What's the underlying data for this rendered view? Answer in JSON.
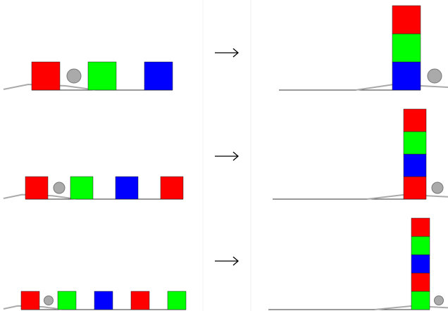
{
  "rows": [
    {
      "start": [
        "#ff0000",
        "#00ff00",
        "#0000ff"
      ],
      "goal": [
        "#0000ff",
        "#00ff00",
        "#ff0000"
      ]
    },
    {
      "start": [
        "#ff0000",
        "#00ff00",
        "#0000ff",
        "#ff0000"
      ],
      "goal": [
        "#ff0000",
        "#0000ff",
        "#00ff00",
        "#ff0000"
      ]
    },
    {
      "start": [
        "#ff0000",
        "#00ff00",
        "#0000ff",
        "#ff0000",
        "#00ff00"
      ],
      "goal": [
        "#00ff00",
        "#ff0000",
        "#0000ff",
        "#00ff00",
        "#ff0000"
      ]
    }
  ]
}
